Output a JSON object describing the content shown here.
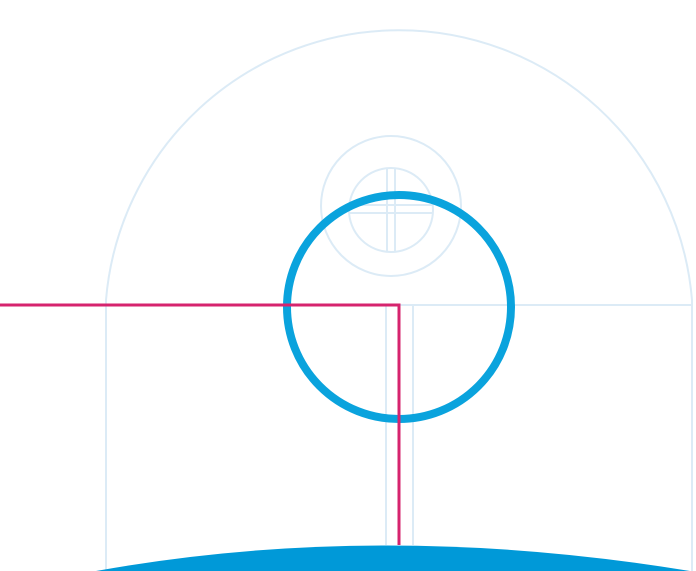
{
  "colors": {
    "background": "#ffffff",
    "guide": "#dcebf6",
    "accent_ring": "#0aa3dd",
    "marker_line": "#d6246e",
    "base_fill": "#0099d8"
  }
}
